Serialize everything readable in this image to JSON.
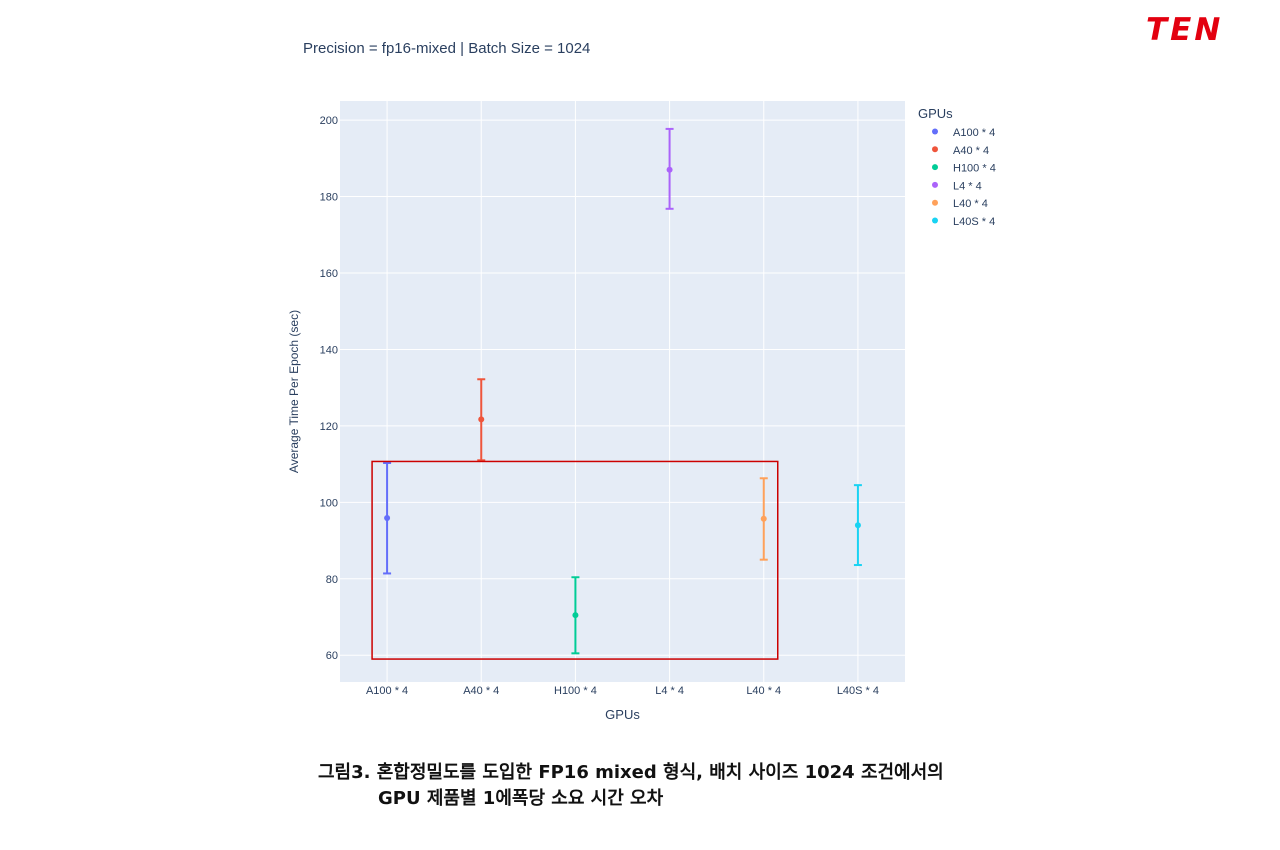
{
  "logo": {
    "text": "TEN",
    "color": "#e3000f"
  },
  "caption": {
    "line1": "그림3. 혼합정밀도를 도입한 FP16 mixed 형식, 배치 사이즈 1024 조건에서의",
    "line2": "GPU 제품별 1에폭당 소요 시간 오차"
  },
  "chart_data": {
    "type": "scatter",
    "title": "Precision = fp16-mixed  |  Batch Size = 1024",
    "xlabel": "GPUs",
    "ylabel": "Average Time Per Epoch (sec)",
    "ylim": [
      53,
      205
    ],
    "yticks": [
      60,
      80,
      100,
      120,
      140,
      160,
      180,
      200
    ],
    "categories": [
      "A100 * 4",
      "A40 * 4",
      "H100 * 4",
      "L4 * 4",
      "L40 * 4",
      "L40S * 4"
    ],
    "legend": {
      "title": "GPUs",
      "placement": "top-right outside"
    },
    "grid": true,
    "series": [
      {
        "name": "A100 * 4",
        "x": "A100 * 4",
        "y": 95.9,
        "error_low": 81.4,
        "error_high": 110.3,
        "color": "#636efa"
      },
      {
        "name": "A40 * 4",
        "x": "A40 * 4",
        "y": 121.7,
        "error_low": 111.0,
        "error_high": 132.2,
        "color": "#ef553b"
      },
      {
        "name": "H100 * 4",
        "x": "H100 * 4",
        "y": 70.5,
        "error_low": 60.5,
        "error_high": 80.4,
        "color": "#00cc96"
      },
      {
        "name": "L4 * 4",
        "x": "L4 * 4",
        "y": 187.0,
        "error_low": 176.8,
        "error_high": 197.7,
        "color": "#ab63fa"
      },
      {
        "name": "L40 * 4",
        "x": "L40 * 4",
        "y": 95.7,
        "error_low": 85.0,
        "error_high": 106.3,
        "color": "#ffa15a"
      },
      {
        "name": "L40S * 4",
        "x": "L40S * 4",
        "y": 94.0,
        "error_low": 83.6,
        "error_high": 104.5,
        "color": "#19d3f3"
      }
    ],
    "annotation_box": {
      "x_from": "A100 * 4",
      "x_to": "L40 * 4",
      "y_low": 59,
      "y_high": 110.7,
      "color": "#cc0000"
    }
  }
}
